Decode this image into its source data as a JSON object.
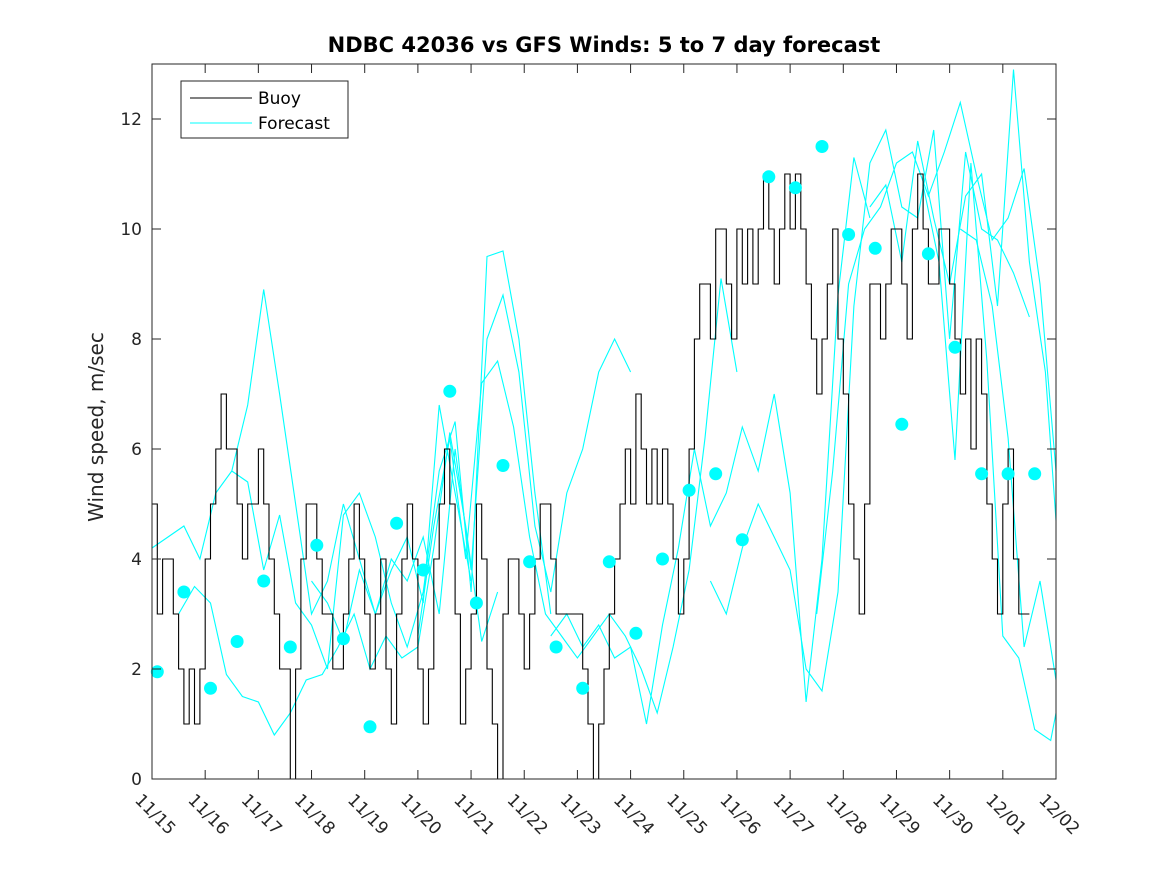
{
  "chart_data": {
    "type": "line",
    "title": "NDBC 42036 vs GFS Winds: 5 to 7 day forecast",
    "xlabel": "",
    "ylabel": "Wind speed, m/sec",
    "xlim": [
      0,
      17
    ],
    "ylim": [
      0,
      13
    ],
    "yticks": [
      0,
      2,
      4,
      6,
      8,
      10,
      12
    ],
    "xticks": [
      0,
      1,
      2,
      3,
      4,
      5,
      6,
      7,
      8,
      9,
      10,
      11,
      12,
      13,
      14,
      15,
      16,
      17
    ],
    "xtick_labels": [
      "11/15",
      "11/16",
      "11/17",
      "11/18",
      "11/19",
      "11/20",
      "11/21",
      "11/22",
      "11/23",
      "11/24",
      "11/25",
      "11/26",
      "11/27",
      "11/28",
      "11/29",
      "11/30",
      "12/01",
      "12/02"
    ],
    "legend": [
      "Buoy",
      "Forecast"
    ],
    "legend_location": "top-left",
    "colors": {
      "buoy": "#000000",
      "forecast": "#00ffff",
      "axes": "#262626"
    },
    "series": [
      {
        "name": "Buoy",
        "style": "step",
        "x": [
          0,
          0.1,
          0.2,
          0.3,
          0.4,
          0.5,
          0.6,
          0.7,
          0.8,
          0.9,
          1.0,
          1.1,
          1.2,
          1.3,
          1.4,
          1.5,
          1.6,
          1.7,
          1.8,
          1.9,
          2.0,
          2.1,
          2.2,
          2.3,
          2.4,
          2.5,
          2.6,
          2.7,
          2.8,
          2.9,
          3.0,
          3.1,
          3.2,
          3.3,
          3.4,
          3.5,
          3.6,
          3.7,
          3.8,
          3.9,
          4.0,
          4.1,
          4.2,
          4.3,
          4.4,
          4.5,
          4.6,
          4.7,
          4.8,
          4.9,
          5.0,
          5.1,
          5.2,
          5.3,
          5.4,
          5.5,
          5.6,
          5.7,
          5.8,
          5.9,
          6.0,
          6.1,
          6.2,
          6.3,
          6.4,
          6.5,
          6.6,
          6.7,
          6.8,
          6.9,
          7.0,
          7.1,
          7.2,
          7.3,
          7.4,
          7.5,
          7.6,
          7.7,
          7.8,
          7.9,
          8.0,
          8.1,
          8.2,
          8.3,
          8.4,
          8.5,
          8.6,
          8.7,
          8.8,
          8.9,
          9.0,
          9.1,
          9.2,
          9.3,
          9.4,
          9.5,
          9.6,
          9.7,
          9.8,
          9.9,
          10.0,
          10.1,
          10.2,
          10.3,
          10.4,
          10.5,
          10.6,
          10.7,
          10.8,
          10.9,
          11.0,
          11.1,
          11.2,
          11.3,
          11.4,
          11.5,
          11.6,
          11.7,
          11.8,
          11.9,
          12.0,
          12.1,
          12.2,
          12.3,
          12.4,
          12.5,
          12.6,
          12.7,
          12.8,
          12.9,
          13.0,
          13.1,
          13.2,
          13.3,
          13.4,
          13.5,
          13.6,
          13.7,
          13.8,
          13.9,
          14.0,
          14.1,
          14.2,
          14.3,
          14.4,
          14.5,
          14.6,
          14.7,
          14.8,
          14.9,
          15.0,
          15.1,
          15.2,
          15.3,
          15.4,
          15.5,
          15.6,
          15.7,
          15.8,
          15.9,
          16.0,
          16.1,
          16.2,
          16.3,
          16.4,
          16.5
        ],
        "values": [
          5,
          3,
          4,
          4,
          3,
          2,
          1,
          2,
          1,
          2,
          4,
          5,
          6,
          7,
          6,
          6,
          5,
          4,
          5,
          5,
          6,
          5,
          4,
          3,
          2,
          2,
          0,
          2,
          4,
          5,
          5,
          4,
          3,
          3,
          2,
          2,
          3,
          4,
          5,
          4,
          3,
          2,
          3,
          4,
          2,
          1,
          3,
          4,
          5,
          4,
          2,
          1,
          2,
          4,
          5,
          6,
          5,
          3,
          1,
          2,
          3,
          5,
          4,
          2,
          1,
          0,
          3,
          4,
          4,
          3,
          2,
          3,
          4,
          5,
          5,
          4,
          3,
          3,
          3,
          3,
          3,
          2,
          1,
          0,
          1,
          2,
          3,
          4,
          5,
          6,
          5,
          7,
          6,
          5,
          6,
          5,
          6,
          5,
          4,
          3,
          4,
          6,
          8,
          9,
          9,
          8,
          10,
          10,
          9,
          8,
          10,
          9,
          10,
          9,
          10,
          11,
          10,
          9,
          10,
          11,
          10,
          11,
          10,
          9,
          8,
          7,
          8,
          9,
          10,
          8,
          7,
          5,
          4,
          3,
          5,
          9,
          9,
          8,
          9,
          10,
          10,
          9,
          8,
          10,
          11,
          10,
          9,
          9,
          10,
          10,
          9,
          8,
          7,
          8,
          6,
          8,
          7,
          5,
          4,
          3,
          5,
          6,
          4,
          3,
          3,
          3
        ]
      },
      {
        "name": "Forecast 1",
        "x": [
          0,
          0.3,
          0.6,
          0.9,
          1.2,
          1.5,
          1.8,
          2.1,
          2.4,
          2.7,
          3.0,
          3.3,
          3.6,
          3.9,
          4.2,
          4.5,
          4.8,
          5.1,
          5.4,
          5.7,
          6.0
        ],
        "values": [
          4.2,
          4.4,
          4.6,
          4.0,
          5.2,
          5.6,
          6.8,
          8.9,
          7.0,
          5.0,
          3.0,
          3.6,
          5.0,
          4.0,
          3.0,
          3.8,
          4.4,
          3.2,
          6.8,
          5.2,
          3.6
        ]
      },
      {
        "name": "Forecast 2",
        "x": [
          0.5,
          0.8,
          1.1,
          1.4,
          1.7,
          2.0,
          2.3,
          2.6,
          2.9,
          3.2,
          3.5,
          3.8,
          4.1,
          4.4,
          4.7,
          5.0,
          5.3,
          5.6,
          5.9,
          6.2,
          6.5
        ],
        "values": [
          3.0,
          3.5,
          3.2,
          1.9,
          1.5,
          1.4,
          0.8,
          1.2,
          1.8,
          1.9,
          2.4,
          3.0,
          2.0,
          2.6,
          2.2,
          2.4,
          4.2,
          6.3,
          4.6,
          2.5,
          3.4
        ]
      },
      {
        "name": "Forecast 3",
        "x": [
          1.5,
          1.8,
          2.1,
          2.4,
          2.7,
          3.0,
          3.3,
          3.6,
          3.9,
          4.2,
          4.5,
          4.8,
          5.1,
          5.4,
          5.7,
          6.0,
          6.3,
          6.6,
          6.9,
          7.2,
          7.5
        ],
        "values": [
          5.6,
          5.4,
          3.8,
          4.8,
          3.2,
          2.8,
          2.0,
          4.8,
          5.2,
          4.4,
          3.2,
          2.4,
          3.4,
          5.6,
          6.5,
          3.4,
          9.5,
          9.6,
          8.0,
          5.2,
          3.0
        ]
      },
      {
        "name": "Forecast 4",
        "x": [
          3.0,
          3.3,
          3.6,
          3.9,
          4.2,
          4.5,
          4.8,
          5.1,
          5.4,
          5.7,
          6.0,
          6.3,
          6.6,
          6.9,
          7.2,
          7.5,
          7.8,
          8.1,
          8.4,
          8.7,
          9.0
        ],
        "values": [
          3.6,
          3.2,
          2.5,
          3.8,
          3.0,
          4.0,
          3.6,
          4.4,
          3.0,
          6.0,
          3.8,
          8.0,
          8.8,
          7.4,
          4.6,
          3.4,
          5.2,
          6.0,
          7.4,
          8.0,
          7.4
        ]
      },
      {
        "name": "Forecast 5",
        "x": [
          5.0,
          5.3,
          5.6,
          5.9,
          6.2,
          6.5,
          6.8,
          7.1,
          7.4,
          7.7,
          8.0,
          8.3,
          8.6,
          8.9,
          9.2,
          9.5,
          9.8,
          10.1,
          10.4,
          10.7,
          11.0
        ],
        "values": [
          2.6,
          4.6,
          6.2,
          4.0,
          7.2,
          7.6,
          6.4,
          4.4,
          3.0,
          2.6,
          2.2,
          2.6,
          3.0,
          2.6,
          2.0,
          1.2,
          2.4,
          3.8,
          6.2,
          9.1,
          7.4
        ]
      },
      {
        "name": "Forecast 6",
        "x": [
          7.5,
          7.8,
          8.1,
          8.4,
          8.7,
          9.0,
          9.3,
          9.6,
          9.9,
          10.2,
          10.5,
          10.8,
          11.1,
          11.4,
          11.7,
          12.0,
          12.3,
          12.6,
          12.9,
          13.2,
          13.5
        ],
        "values": [
          2.6,
          3.0,
          2.4,
          2.8,
          2.2,
          2.4,
          1.0,
          2.8,
          4.2,
          6.0,
          4.6,
          5.2,
          6.4,
          5.6,
          7.0,
          5.2,
          1.4,
          4.0,
          8.8,
          11.3,
          10.2
        ]
      },
      {
        "name": "Forecast 7",
        "x": [
          10.5,
          10.8,
          11.1,
          11.4,
          11.7,
          12.0,
          12.3,
          12.6,
          12.9,
          13.2,
          13.5,
          13.8,
          14.1,
          14.4,
          14.7,
          15.0,
          15.3,
          15.6,
          15.9,
          16.2,
          16.5
        ],
        "values": [
          3.6,
          3.0,
          4.2,
          5.0,
          4.4,
          3.8,
          2.0,
          1.6,
          3.4,
          8.6,
          11.2,
          11.8,
          10.4,
          10.2,
          11.8,
          8.0,
          11.4,
          10.0,
          9.8,
          9.2,
          8.4
        ]
      },
      {
        "name": "Forecast 8",
        "x": [
          12.5,
          12.8,
          13.1,
          13.4,
          13.7,
          14.0,
          14.3,
          14.6,
          14.9,
          15.2,
          15.5,
          15.8,
          16.1,
          16.4,
          16.7,
          17.0
        ],
        "values": [
          3.0,
          5.6,
          9.0,
          10.0,
          10.4,
          11.2,
          11.4,
          10.6,
          11.4,
          12.3,
          11.0,
          9.8,
          10.2,
          11.1,
          9.0,
          5.6
        ]
      },
      {
        "name": "Forecast 9",
        "x": [
          13.5,
          13.8,
          14.1,
          14.4,
          14.7,
          15.0,
          15.3,
          15.6,
          15.9,
          16.2,
          16.5,
          16.8,
          17.0
        ],
        "values": [
          10.4,
          10.8,
          9.4,
          11.6,
          10.2,
          9.0,
          10.6,
          11.0,
          8.6,
          12.9,
          9.4,
          7.4,
          4.7
        ]
      },
      {
        "name": "Forecast 10",
        "x": [
          14.5,
          14.8,
          15.1,
          15.4,
          15.7,
          16.0,
          16.3,
          16.6,
          16.9,
          17.0
        ],
        "values": [
          10.8,
          9.4,
          5.8,
          11.2,
          7.6,
          2.6,
          2.2,
          0.9,
          0.7,
          1.2
        ]
      },
      {
        "name": "Forecast 11",
        "x": [
          15.2,
          15.5,
          15.8,
          16.1,
          16.4,
          16.7,
          17.0
        ],
        "values": [
          10.0,
          9.8,
          8.6,
          6.2,
          2.4,
          3.6,
          1.8
        ]
      }
    ],
    "markers": {
      "name": "Forecast points",
      "x": [
        0.1,
        0.6,
        1.1,
        1.6,
        2.1,
        2.6,
        3.1,
        3.6,
        4.1,
        4.6,
        5.1,
        5.6,
        6.1,
        6.6,
        7.1,
        7.6,
        8.1,
        8.6,
        9.1,
        9.6,
        10.1,
        10.6,
        11.1,
        11.6,
        12.1,
        12.6,
        13.1,
        13.6,
        14.1,
        14.6,
        15.1,
        15.6,
        16.1,
        16.6
      ],
      "values": [
        1.95,
        3.4,
        1.65,
        2.5,
        3.6,
        2.4,
        4.25,
        2.55,
        0.95,
        4.65,
        3.8,
        7.05,
        3.2,
        5.7,
        3.95,
        2.4,
        1.65,
        3.95,
        2.65,
        4.0,
        5.25,
        5.55,
        4.35,
        10.95,
        10.75,
        11.5,
        9.9,
        9.65,
        6.45,
        9.55,
        7.85,
        5.55,
        5.55,
        5.55
      ]
    }
  }
}
